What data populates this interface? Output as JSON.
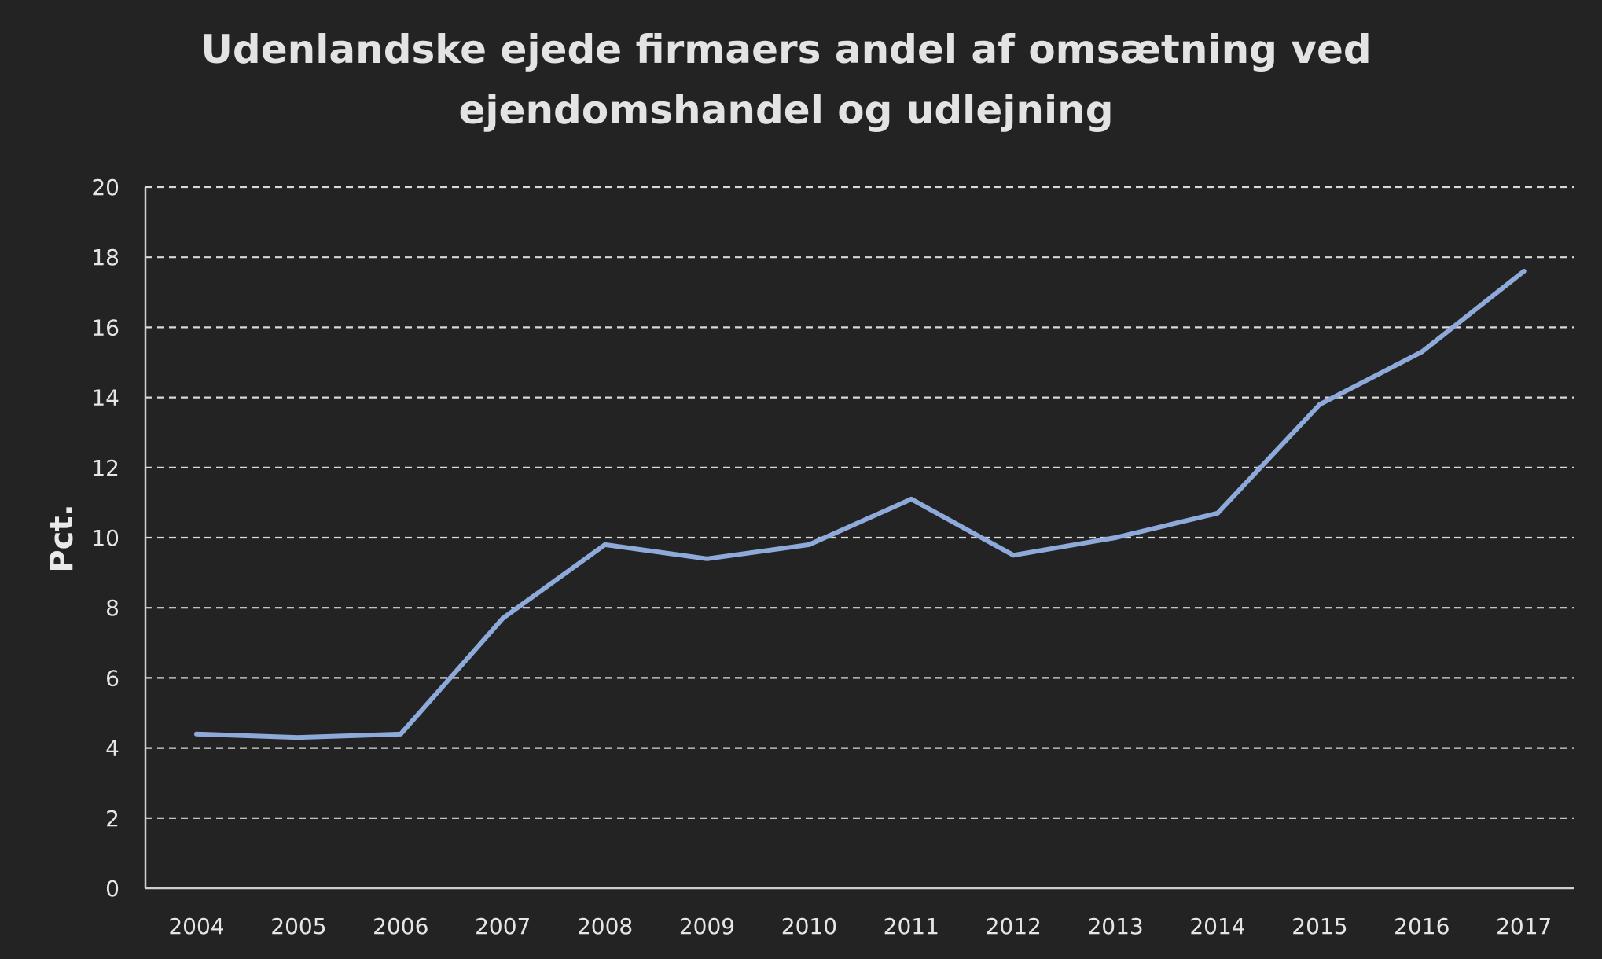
{
  "chart_data": {
    "type": "line",
    "title": "Udenlandske ejede firmaers andel af omsætning ved ejendomshandel og udlejning",
    "title_lines": [
      "Udenlandske ejede firmaers andel af omsætning ved",
      "ejendomshandel og udlejning"
    ],
    "xlabel": "",
    "ylabel": "Pct.",
    "x": [
      "2004",
      "2005",
      "2006",
      "2007",
      "2008",
      "2009",
      "2010",
      "2011",
      "2012",
      "2013",
      "2014",
      "2015",
      "2016",
      "2017"
    ],
    "series": [
      {
        "values": [
          4.4,
          4.3,
          4.4,
          7.7,
          9.8,
          9.4,
          9.8,
          11.1,
          9.5,
          10.0,
          10.7,
          13.8,
          15.3,
          17.6
        ],
        "color": "#8eaadb"
      }
    ],
    "ylim": [
      0,
      20
    ],
    "yticks": [
      "0",
      "2",
      "4",
      "6",
      "8",
      "10",
      "12",
      "14",
      "16",
      "18",
      "20"
    ],
    "grid": true,
    "grid_style": "dashed",
    "legend": "none",
    "background": "#232323",
    "text_color": "#e6e6e6"
  }
}
